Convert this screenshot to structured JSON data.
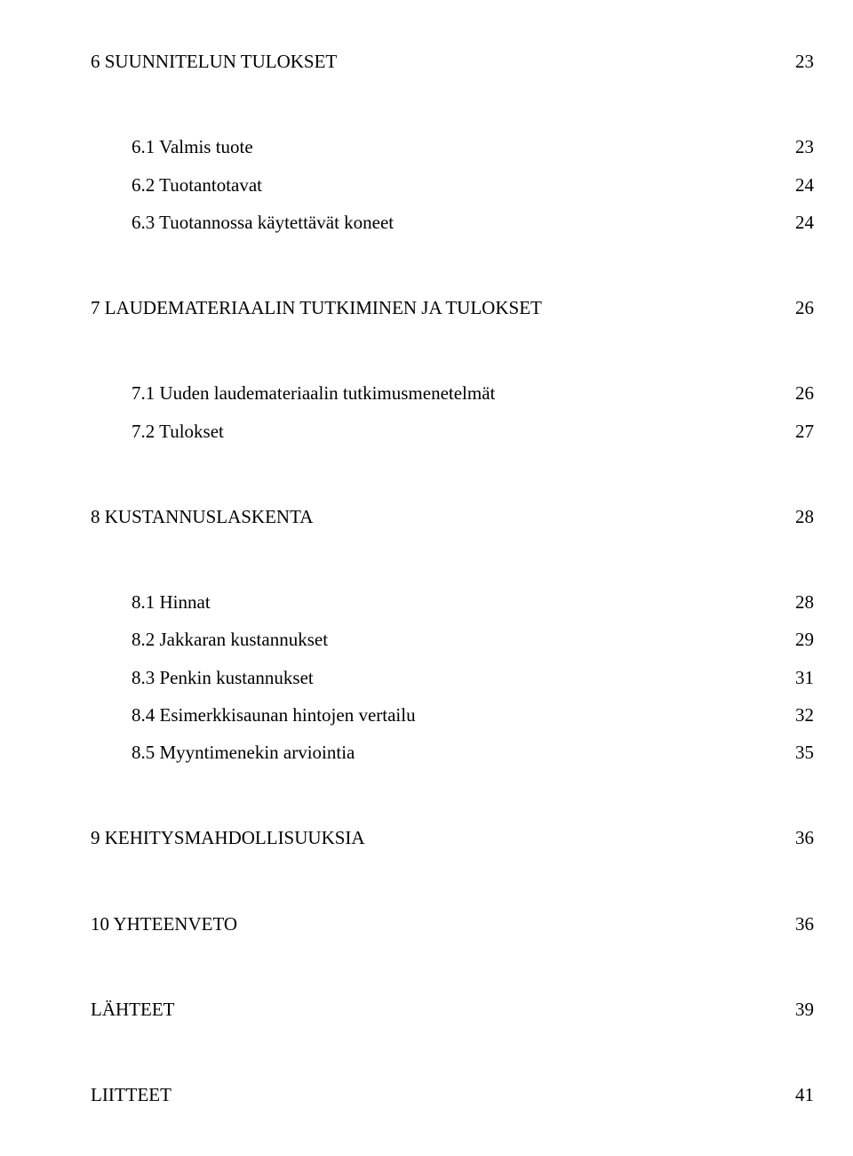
{
  "text_color": "#000000",
  "background_color": "#ffffff",
  "font_family": "Times New Roman",
  "font_size_pt": 16,
  "toc": {
    "s6": {
      "title": "6 SUUNNITELUN TULOKSET",
      "page": "23",
      "items": [
        {
          "label": "6.1 Valmis tuote",
          "page": "23"
        },
        {
          "label": "6.2 Tuotantotavat",
          "page": "24"
        },
        {
          "label": "6.3 Tuotannossa käytettävät koneet",
          "page": "24"
        }
      ]
    },
    "s7": {
      "title": "7 LAUDEMATERIAALIN TUTKIMINEN JA TULOKSET",
      "page": "26",
      "items": [
        {
          "label": "7.1 Uuden laudemateriaalin tutkimusmenetelmät",
          "page": "26"
        },
        {
          "label": "7.2 Tulokset",
          "page": "27"
        }
      ]
    },
    "s8": {
      "title": "8 KUSTANNUSLASKENTA",
      "page": "28",
      "items": [
        {
          "label": "8.1 Hinnat",
          "page": "28"
        },
        {
          "label": "8.2 Jakkaran kustannukset",
          "page": "29"
        },
        {
          "label": "8.3 Penkin kustannukset",
          "page": "31"
        },
        {
          "label": "8.4 Esimerkkisaunan hintojen vertailu",
          "page": "32"
        },
        {
          "label": "8.5 Myyntimenekin arviointia",
          "page": "35"
        }
      ]
    },
    "s9": {
      "title": "9   KEHITYSMAHDOLLISUUKSIA",
      "page": "36"
    },
    "s10": {
      "title": "10  YHTEENVETO",
      "page": "36"
    },
    "lahteet": {
      "title": "LÄHTEET",
      "page": "39"
    },
    "liitteet": {
      "title": "LIITTEET",
      "page": "41"
    }
  }
}
